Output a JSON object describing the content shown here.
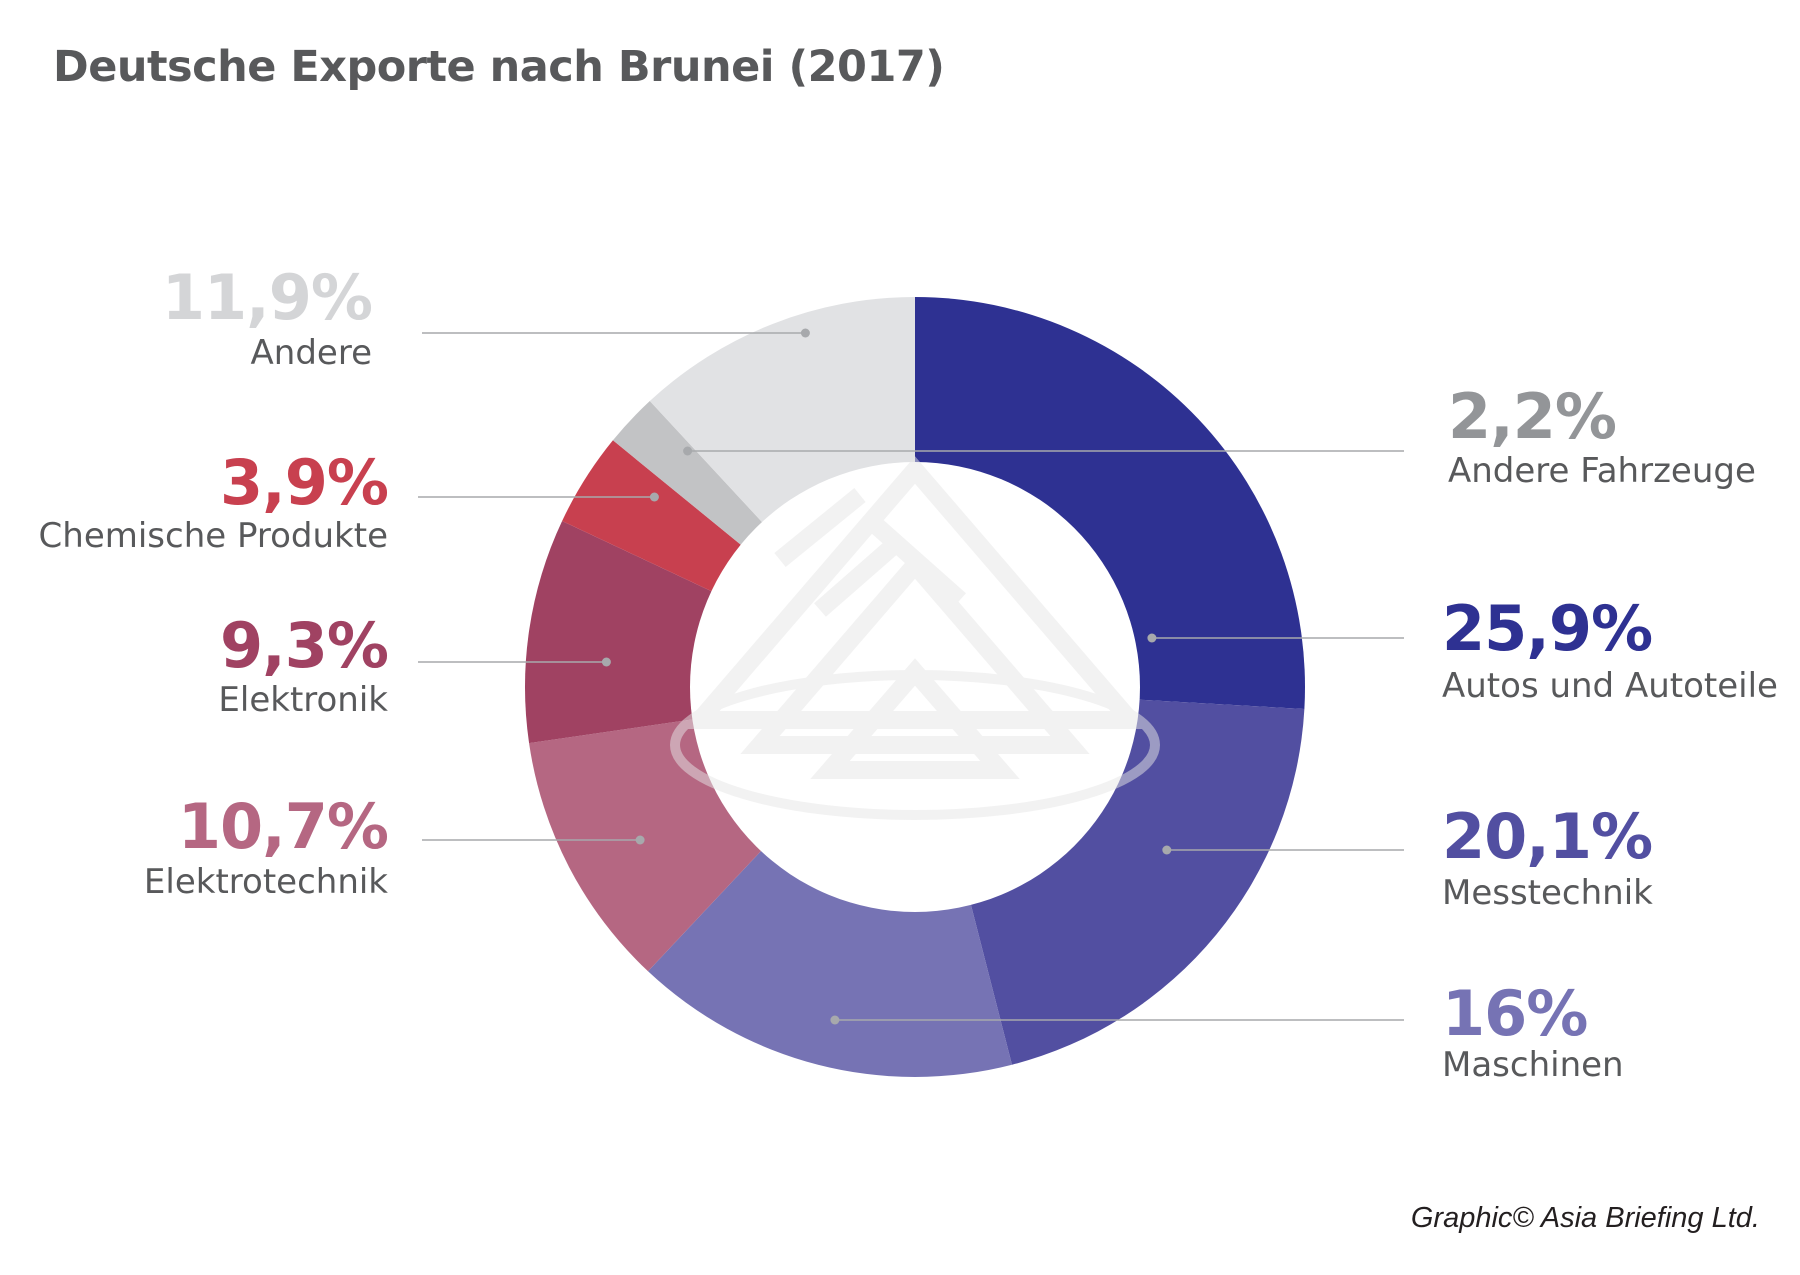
{
  "title": "Deutsche Exporte nach Brunei (2017)",
  "credit": "Graphic© Asia Briefing Ltd.",
  "chart_data": {
    "type": "pie",
    "donut": true,
    "title": "Deutsche Exporte nach Brunei (2017)",
    "slices": [
      {
        "label": "Autos und Autoteile",
        "value": 25.9,
        "display": "25,9%",
        "color": "#2e3192"
      },
      {
        "label": "Messtechnik",
        "value": 20.1,
        "display": "20,1%",
        "color": "#524fa1"
      },
      {
        "label": "Maschinen",
        "value": 16,
        "display": "16%",
        "color": "#7673b4"
      },
      {
        "label": "Elektrotechnik",
        "value": 10.7,
        "display": "10,7%",
        "color": "#b56782"
      },
      {
        "label": "Elektronik",
        "value": 9.3,
        "display": "9,3%",
        "color": "#a04262"
      },
      {
        "label": "Chemische Produkte",
        "value": 3.9,
        "display": "3,9%",
        "color": "#c8404f"
      },
      {
        "label": "Andere Fahrzeuge",
        "value": 2.2,
        "display": "2,2%",
        "color": "#c2c3c5",
        "pct_color": "#939598"
      },
      {
        "label": "Andere",
        "value": 11.9,
        "display": "11,9%",
        "color": "#e1e2e4",
        "pct_color": "#d4d5d7"
      }
    ]
  }
}
